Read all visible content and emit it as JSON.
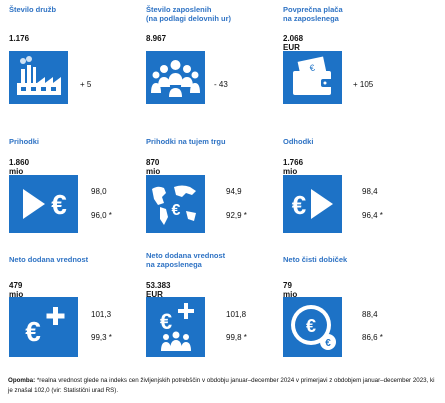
{
  "tiles": [
    {
      "title": "Število družb",
      "value": "1.176",
      "side": [
        "+ 5"
      ],
      "icon": "factory-icon"
    },
    {
      "title": "Število zaposlenih\n(na podlagi delovnih ur)",
      "value": "8.967",
      "side": [
        "- 43"
      ],
      "icon": "people-icon"
    },
    {
      "title": "Povprečna plača\nna zaposlenega",
      "value": "2.068 EUR",
      "side": [
        "+ 105"
      ],
      "icon": "wallet-icon"
    },
    {
      "title": "Prihodki",
      "value": "1.860 mio EUR",
      "side": [
        "98,0",
        "96,0 *"
      ],
      "icon": "arrow-euro-icon"
    },
    {
      "title": "Prihodki na tujem trgu",
      "value": "870 mio EUR",
      "side": [
        "94,9",
        "92,9 *"
      ],
      "icon": "globe-euro-icon"
    },
    {
      "title": "Odhodki",
      "value": "1.766 mio EUR",
      "side": [
        "98,4",
        "96,4 *"
      ],
      "icon": "euro-arrow-icon"
    },
    {
      "title": "Neto dodana vrednost",
      "value": "479 mio EUR",
      "side": [
        "101,3",
        "99,3 *"
      ],
      "icon": "euro-plus-icon"
    },
    {
      "title": "Neto dodana vrednost\nna zaposlenega",
      "value": "53.383 EUR",
      "side": [
        "101,8",
        "99,8 *"
      ],
      "icon": "euro-plus-people-icon"
    },
    {
      "title": "Neto čisti dobiček",
      "value": "79 mio EUR",
      "side": [
        "88,4",
        "86,6 *"
      ],
      "icon": "coin-euro-icon"
    }
  ],
  "note": {
    "label": "Opomba:",
    "text": " *realna vrednost glede na indeks cen življenjskih potrebščin v obdobju januar–december 2024 v primerjavi z obdobjem januar–december 2023, ki je znašal 102,0 (vir: Statistični urad RS)."
  },
  "colors": {
    "accent": "#1d72c6",
    "title": "#2f73c4"
  }
}
